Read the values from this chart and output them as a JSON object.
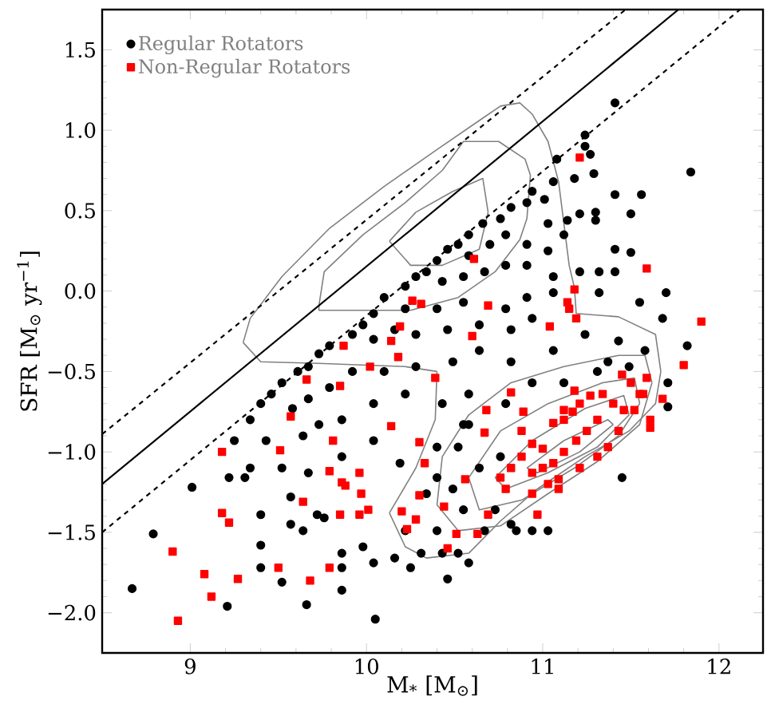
{
  "chart_data": {
    "type": "scatter",
    "xlabel": "M$_{*}$ [M$_{⊙}$]",
    "ylabel": "SFR [M$_{⊙}$ yr$^{−1}$]",
    "xlim": [
      8.5,
      12.25
    ],
    "ylim": [
      -2.25,
      1.75
    ],
    "xticks": [
      9,
      10,
      11,
      12
    ],
    "yticks": [
      {
        "value": -2.0,
        "label": "−2.0"
      },
      {
        "value": -1.5,
        "label": "−1.5"
      },
      {
        "value": -1.0,
        "label": "−1.0"
      },
      {
        "value": -0.5,
        "label": "−0.5"
      },
      {
        "value": 0.0,
        "label": "0.0"
      },
      {
        "value": 0.5,
        "label": "0.5"
      },
      {
        "value": 1.0,
        "label": "1.0"
      },
      {
        "value": 1.5,
        "label": "1.5"
      }
    ],
    "legend": "top left",
    "series": [
      {
        "name": "Regular Rotators",
        "color": "#000000",
        "marker": "circle",
        "x": [
          11.41,
          11.84,
          11.24,
          11.24,
          11.27,
          11.29,
          11.18,
          11.08,
          11.06,
          11.41,
          11.56,
          11.5,
          11.3,
          11.3,
          11.21,
          11.14,
          11.03,
          10.94,
          10.91,
          11.01,
          10.82,
          10.76,
          10.66,
          10.58,
          10.52,
          10.46,
          10.4,
          10.34,
          10.28,
          10.22,
          10.58,
          10.7,
          10.79,
          10.91,
          11.03,
          11.12,
          11.41,
          11.5,
          11.41,
          11.32,
          11.21,
          11.06,
          10.91,
          10.79,
          10.67,
          10.55,
          10.43,
          11.7,
          11.68,
          11.55,
          11.32,
          11.06,
          10.91,
          10.79,
          10.55,
          10.4,
          10.22,
          10.1,
          10.04,
          9.98,
          9.92,
          9.79,
          9.73,
          9.67,
          9.61,
          9.52,
          9.46,
          9.4,
          9.34,
          9.25,
          10.04,
          10.16,
          10.28,
          10.46,
          10.64,
          10.82,
          10.94,
          11.24,
          11.43,
          11.58,
          11.82,
          11.71,
          11.71,
          11.45,
          10.64,
          10.82,
          11.06,
          10.49,
          10.28,
          10.1,
          9.92,
          9.79,
          9.67,
          9.58,
          10.04,
          10.22,
          10.43,
          10.58,
          9.86,
          9.73,
          9.64,
          9.43,
          9.34,
          9.22,
          9.31,
          9.52,
          9.67,
          9.86,
          10.04,
          10.19,
          10.4,
          10.55,
          10.52,
          10.64,
          10.49,
          10.4,
          10.34,
          10.55,
          10.73,
          10.85,
          10.94,
          10.67,
          10.52,
          10.43,
          10.31,
          10.25,
          10.16,
          10.04,
          9.98,
          9.86,
          9.86,
          9.86,
          9.52,
          9.4,
          9.4,
          9.4,
          9.57,
          9.64,
          9.72,
          9.76,
          9.57,
          9.01,
          8.79,
          8.67,
          9.21,
          9.66,
          10.05,
          10.46,
          10.58,
          10.82,
          11.03,
          10.58,
          10.76,
          10.4,
          10.22,
          10.79,
          10.94,
          11.12,
          11.31,
          11.37,
          11.49
        ],
        "values": [
          1.17,
          0.74,
          0.97,
          0.9,
          0.85,
          0.73,
          0.7,
          0.82,
          0.68,
          0.6,
          0.6,
          0.48,
          0.49,
          0.44,
          0.48,
          0.44,
          0.42,
          0.62,
          0.55,
          0.57,
          0.52,
          0.45,
          0.42,
          0.35,
          0.29,
          0.26,
          0.19,
          0.12,
          0.09,
          0.03,
          0.22,
          0.29,
          0.35,
          0.29,
          0.25,
          0.35,
          0.26,
          0.24,
          0.12,
          0.12,
          0.12,
          0.09,
          0.16,
          0.16,
          0.12,
          0.09,
          0.06,
          -0.01,
          -0.17,
          -0.07,
          -0.01,
          -0.01,
          -0.04,
          -0.11,
          -0.07,
          -0.11,
          -0.11,
          -0.04,
          -0.14,
          -0.21,
          -0.27,
          -0.34,
          -0.39,
          -0.47,
          -0.5,
          -0.57,
          -0.64,
          -0.7,
          -0.8,
          -0.93,
          -0.3,
          -0.24,
          -0.27,
          -0.24,
          -0.21,
          -0.24,
          -0.17,
          -0.27,
          -0.31,
          -0.37,
          -0.34,
          -0.57,
          -0.72,
          -1.16,
          -0.37,
          -0.44,
          -0.37,
          -0.44,
          -0.47,
          -0.5,
          -0.5,
          -0.6,
          -0.67,
          -0.73,
          -0.7,
          -0.64,
          -0.7,
          -0.64,
          -0.8,
          -0.83,
          -0.9,
          -0.93,
          -1.1,
          -1.16,
          -1.16,
          -1.1,
          -1.13,
          -1.03,
          -0.93,
          -1.07,
          -0.97,
          -0.83,
          -0.97,
          -1.1,
          -1.23,
          -1.16,
          -1.26,
          -1.36,
          -1.36,
          -1.49,
          -1.49,
          -1.49,
          -1.63,
          -1.63,
          -1.63,
          -1.72,
          -1.66,
          -1.69,
          -1.59,
          -1.63,
          -1.72,
          -1.86,
          -1.81,
          -1.72,
          -1.39,
          -1.58,
          -1.45,
          -1.49,
          -1.39,
          -1.41,
          -1.28,
          -1.22,
          -1.51,
          -1.85,
          -1.96,
          -1.95,
          -2.04,
          -1.79,
          -1.69,
          -1.45,
          -1.49,
          -0.83,
          -1.03,
          -1.49,
          -1.49,
          -0.7,
          -0.57,
          -0.57,
          -0.5,
          -0.44,
          -0.47
        ]
      },
      {
        "name": "Non-Regular Rotators",
        "color": "#ff0000",
        "marker": "square",
        "x": [
          11.21,
          10.61,
          11.59,
          11.18,
          11.14,
          11.15,
          11.19,
          11.9,
          10.69,
          10.26,
          10.31,
          11.04,
          10.19,
          10.14,
          10.6,
          9.87,
          10.18,
          10.02,
          10.39,
          9.66,
          9.85,
          11.8,
          10.82,
          9.57,
          10.14,
          9.81,
          9.51,
          9.18,
          10.68,
          10.89,
          10.3,
          10.33,
          10.67,
          9.79,
          9.86,
          9.88,
          9.96,
          9.97,
          9.64,
          10.3,
          10.2,
          10.01,
          9.96,
          9.85,
          9.18,
          9.22,
          10.28,
          10.23,
          10.44,
          10.56,
          10.51,
          10.63,
          10.46,
          8.9,
          9.79,
          9.5,
          9.08,
          9.27,
          9.68,
          9.12,
          8.93,
          10.97,
          10.69,
          11.68,
          11.61,
          11.61,
          11.57,
          11.5,
          11.45,
          11.34,
          11.27,
          11.21,
          11.17,
          11.12,
          11.4,
          11.46,
          11.31,
          11.25,
          11.19,
          11.12,
          11.06,
          11.0,
          10.94,
          10.88,
          10.82,
          10.76,
          10.79,
          11.03,
          11.09,
          11.21,
          11.31,
          11.37,
          11.43,
          11.52,
          11.55,
          11.59,
          11.0,
          10.94,
          11.06,
          10.88,
          11.18,
          11.12,
          11.09,
          10.94
        ],
        "values": [
          0.83,
          0.2,
          0.14,
          0.01,
          -0.07,
          -0.11,
          -0.17,
          -0.19,
          -0.09,
          -0.06,
          -0.08,
          -0.22,
          -0.22,
          -0.31,
          -0.28,
          -0.34,
          -0.41,
          -0.47,
          -0.54,
          -0.55,
          -0.59,
          -0.46,
          -0.63,
          -0.78,
          -0.84,
          -0.93,
          -0.99,
          -1.0,
          -0.74,
          -0.75,
          -0.94,
          -1.07,
          -0.88,
          -1.12,
          -1.19,
          -1.21,
          -1.13,
          -1.26,
          -1.31,
          -1.27,
          -1.37,
          -1.36,
          -1.39,
          -1.39,
          -1.38,
          -1.44,
          -1.42,
          -1.48,
          -1.34,
          -1.17,
          -1.51,
          -1.51,
          -1.6,
          -1.62,
          -1.72,
          -1.72,
          -1.76,
          -1.79,
          -1.8,
          -1.9,
          -2.05,
          -1.39,
          -1.39,
          -0.67,
          -0.8,
          -0.85,
          -0.64,
          -0.57,
          -0.52,
          -0.64,
          -0.65,
          -0.7,
          -0.75,
          -0.8,
          -0.7,
          -0.74,
          -0.8,
          -0.87,
          -0.93,
          -1.0,
          -1.07,
          -1.1,
          -1.13,
          -1.03,
          -1.1,
          -1.16,
          -1.23,
          -1.2,
          -1.17,
          -1.1,
          -1.03,
          -0.97,
          -0.87,
          -0.74,
          -0.64,
          -0.54,
          -0.98,
          -0.95,
          -0.82,
          -0.87,
          -0.62,
          -0.74,
          -1.23,
          -1.26
        ]
      },
      {
        "type": "line",
        "color": "#808080",
        "marker": "none",
        "line_style": "solid",
        "x": [
          9.3,
          9.34,
          9.52,
          9.79,
          10.1,
          10.4,
          10.64,
          10.76,
          10.87,
          10.94,
          11.03,
          11.09,
          11.12,
          11.15,
          11.18,
          11.19,
          11.43,
          11.64,
          11.67,
          null,
          11.67,
          11.64,
          11.49,
          11.24,
          10.97,
          10.76,
          10.58,
          10.34,
          10.22,
          10.13,
          null,
          10.13,
          10.28,
          10.39,
          10.4,
          null,
          10.4,
          10.22,
          9.73,
          9.4,
          9.3
        ],
        "values": [
          -0.32,
          -0.17,
          0.09,
          0.39,
          0.65,
          0.88,
          1.06,
          1.15,
          1.17,
          1.1,
          0.93,
          0.68,
          0.42,
          0.16,
          0.02,
          -0.14,
          -0.16,
          -0.27,
          -0.5,
          null,
          -0.5,
          -0.7,
          -0.87,
          -1.03,
          -1.23,
          -1.43,
          -1.63,
          -1.66,
          -1.59,
          -1.38,
          null,
          -1.38,
          -1.1,
          -0.8,
          -0.5,
          null,
          -0.5,
          -0.47,
          -0.45,
          -0.44,
          -0.32
        ]
      },
      {
        "type": "line",
        "color": "#808080",
        "marker": "none",
        "line_style": "solid",
        "x": [
          9.73,
          9.76,
          9.98,
          10.22,
          10.43,
          10.55,
          10.75,
          10.9,
          10.93,
          null,
          10.93,
          10.91,
          10.87,
          10.73,
          10.52,
          10.25,
          9.73,
          9.73
        ],
        "values": [
          -0.09,
          0.12,
          0.35,
          0.55,
          0.75,
          0.93,
          0.93,
          0.82,
          0.72,
          null,
          0.72,
          0.45,
          0.32,
          0.12,
          -0.04,
          -0.12,
          -0.12,
          -0.09
        ]
      },
      {
        "type": "line",
        "color": "#808080",
        "marker": "none",
        "line_style": "solid",
        "x": [
          10.13,
          10.28,
          10.49,
          10.66,
          10.69,
          null,
          10.69,
          10.64,
          10.43,
          10.25,
          10.13
        ],
        "values": [
          0.31,
          0.49,
          0.62,
          0.7,
          0.49,
          null,
          0.49,
          0.26,
          0.16,
          0.16,
          0.31
        ]
      },
      {
        "type": "line",
        "color": "#808080",
        "marker": "none",
        "line_style": "solid",
        "x": [
          10.4,
          10.43,
          10.58,
          10.82,
          11.12,
          11.43,
          11.58,
          11.62,
          null,
          11.62,
          11.55,
          11.31,
          11.03,
          10.76,
          10.52,
          10.4
        ],
        "values": [
          -1.33,
          -1.03,
          -0.77,
          -0.57,
          -0.47,
          -0.4,
          -0.4,
          -0.57,
          null,
          -0.57,
          -0.83,
          -1.06,
          -1.26,
          -1.46,
          -1.49,
          -1.33
        ]
      },
      {
        "type": "line",
        "color": "#808080",
        "marker": "none",
        "line_style": "solid",
        "x": [
          10.58,
          10.76,
          11.03,
          11.34,
          11.52,
          11.55,
          null,
          11.55,
          11.43,
          11.18,
          10.88,
          10.64,
          10.58
        ],
        "values": [
          -1.16,
          -0.87,
          -0.7,
          -0.57,
          -0.54,
          -0.7,
          null,
          -0.7,
          -0.9,
          -1.1,
          -1.3,
          -1.36,
          -1.16
        ]
      },
      {
        "type": "line",
        "color": "#808080",
        "marker": "none",
        "line_style": "solid",
        "x": [
          10.73,
          10.94,
          11.24,
          11.46,
          11.49,
          null,
          11.49,
          11.31,
          11.03,
          10.79,
          10.73
        ],
        "values": [
          -1.16,
          -0.93,
          -0.73,
          -0.65,
          -0.77,
          null,
          -0.77,
          -0.97,
          -1.13,
          -1.23,
          -1.16
        ]
      },
      {
        "type": "line",
        "color": "#808080",
        "marker": "none",
        "line_style": "solid",
        "x": [
          10.91,
          11.12,
          11.37,
          11.4,
          null,
          11.4,
          11.21,
          10.97,
          10.91
        ],
        "values": [
          -1.1,
          -0.93,
          -0.8,
          -0.83,
          null,
          -0.83,
          -1.0,
          -1.13,
          -1.1
        ]
      },
      {
        "type": "line",
        "color": "#000000",
        "marker": "none",
        "line_style": "solid",
        "x": [
          8.5,
          11.77
        ],
        "values": [
          -1.2,
          1.75
        ]
      },
      {
        "type": "line",
        "color": "#000000",
        "marker": "none",
        "line_style": "dashed",
        "x": [
          8.5,
          11.47
        ],
        "values": [
          -0.89,
          1.75
        ]
      },
      {
        "type": "line",
        "color": "#000000",
        "marker": "none",
        "line_style": "dashed",
        "x": [
          8.5,
          12.12
        ],
        "values": [
          -1.5,
          1.75
        ]
      }
    ]
  }
}
